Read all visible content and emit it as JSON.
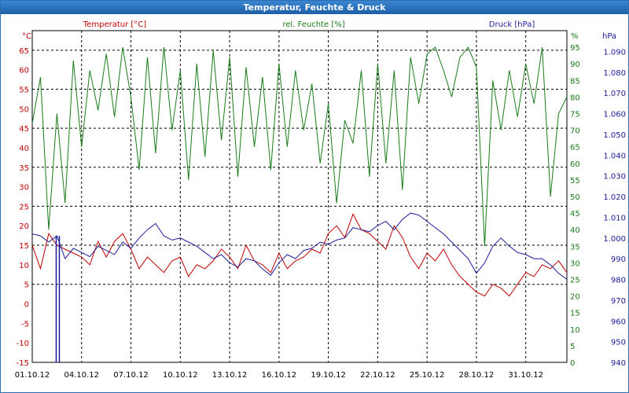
{
  "chart_data": {
    "type": "line",
    "title": "Temperatur, Feuchte & Druck",
    "x_tick_labels": [
      "01.10.12",
      "04.10.12",
      "07.10.12",
      "10.10.12",
      "13.10.12",
      "16.10.12",
      "19.10.12",
      "22.10.12",
      "25.10.12",
      "28.10.12",
      "31.10.12"
    ],
    "axes": {
      "temperature": {
        "label": "Temperatur [°C]",
        "unit_label": "°C",
        "range": [
          -15,
          70
        ],
        "ticks": [
          -15,
          -10,
          -5,
          0,
          5,
          10,
          15,
          20,
          25,
          30,
          35,
          40,
          45,
          50,
          55,
          60,
          65
        ],
        "color": "#c00000"
      },
      "humidity": {
        "label": "rel. Feuchte [%]",
        "unit_label": "%",
        "range": [
          0,
          100
        ],
        "ticks": [
          0,
          5,
          10,
          15,
          20,
          25,
          30,
          35,
          40,
          45,
          50,
          55,
          60,
          65,
          70,
          75,
          80,
          85,
          90,
          95
        ],
        "color": "#1a7a1a"
      },
      "pressure": {
        "label": "Druck [hPa]",
        "unit_label": "hPa",
        "range": [
          940,
          1100
        ],
        "ticks": [
          "940",
          "950",
          "960",
          "970",
          "980",
          "990",
          "1.000",
          "1.010",
          "1.020",
          "1.030",
          "1.040",
          "1.050",
          "1.060",
          "1.070",
          "1.080",
          "1.090"
        ],
        "color": "#1a1a9a"
      }
    },
    "series": [
      {
        "name": "Temperatur",
        "axis": "temperature",
        "color": "#c00000",
        "x": [
          0,
          0.5,
          1,
          1.5,
          2,
          2.5,
          3,
          3.5,
          4,
          4.5,
          5,
          5.5,
          6,
          6.5,
          7,
          7.5,
          8,
          8.5,
          9,
          9.5,
          10,
          10.5,
          11,
          11.5,
          12,
          12.5,
          13,
          13.5,
          14,
          14.5,
          15,
          15.5,
          16,
          16.5,
          17,
          17.5,
          18,
          18.5,
          19,
          19.5,
          20,
          20.5,
          21,
          21.5,
          22,
          22.5,
          23,
          23.5,
          24,
          24.5,
          25,
          25.5,
          26,
          26.5,
          27,
          27.5,
          28,
          28.5,
          29,
          29.5,
          30,
          30.5,
          31,
          31.5,
          32,
          32.5
        ],
        "values": [
          15,
          9,
          18,
          15,
          14,
          13,
          12,
          10,
          16,
          12,
          16,
          18,
          14,
          9,
          12,
          10,
          8,
          11,
          12,
          7,
          10,
          9,
          11,
          14,
          12,
          9,
          15,
          11,
          10,
          8,
          13,
          9,
          11,
          12,
          14,
          13,
          18,
          20,
          17,
          23,
          19,
          18,
          16,
          14,
          20,
          17,
          12,
          9,
          13,
          11,
          14,
          10,
          7,
          5,
          3,
          2,
          5,
          4,
          2,
          5,
          8,
          7,
          10,
          9,
          11,
          8
        ]
      },
      {
        "name": "rel. Feuchte",
        "axis": "humidity",
        "color": "#1a7a1a",
        "x": [
          0,
          0.5,
          1,
          1.5,
          2,
          2.5,
          3,
          3.5,
          4,
          4.5,
          5,
          5.5,
          6,
          6.5,
          7,
          7.5,
          8,
          8.5,
          9,
          9.5,
          10,
          10.5,
          11,
          11.5,
          12,
          12.5,
          13,
          13.5,
          14,
          14.5,
          15,
          15.5,
          16,
          16.5,
          17,
          17.5,
          18,
          18.5,
          19,
          19.5,
          20,
          20.5,
          21,
          21.5,
          22,
          22.5,
          23,
          23.5,
          24,
          24.5,
          25,
          25.5,
          26,
          26.5,
          27,
          27.5,
          28,
          28.5,
          29,
          29.5,
          30,
          30.5,
          31,
          31.5,
          32,
          32.5
        ],
        "values": [
          72,
          86,
          40,
          75,
          48,
          91,
          65,
          88,
          76,
          93,
          74,
          95,
          80,
          58,
          92,
          63,
          95,
          70,
          88,
          55,
          90,
          62,
          94,
          67,
          92,
          56,
          89,
          65,
          86,
          58,
          90,
          65,
          88,
          70,
          84,
          60,
          78,
          48,
          73,
          66,
          88,
          56,
          90,
          60,
          88,
          52,
          92,
          78,
          93,
          95,
          88,
          80,
          92,
          95,
          89,
          35,
          85,
          70,
          88,
          74,
          90,
          78,
          95,
          50,
          75,
          80
        ]
      },
      {
        "name": "Druck",
        "axis": "pressure",
        "color": "#1a1a9a",
        "x": [
          0,
          0.5,
          1,
          1.5,
          2,
          2.5,
          3,
          3.5,
          4,
          4.5,
          5,
          5.5,
          6,
          6.5,
          7,
          7.5,
          8,
          8.5,
          9,
          9.5,
          10,
          10.5,
          11,
          11.5,
          12,
          12.5,
          13,
          13.5,
          14,
          14.5,
          15,
          15.5,
          16,
          16.5,
          17,
          17.5,
          18,
          18.5,
          19,
          19.5,
          20,
          20.5,
          21,
          21.5,
          22,
          22.5,
          23,
          23.5,
          24,
          24.5,
          25,
          25.5,
          26,
          26.5,
          27,
          27.5,
          28,
          28.5,
          29,
          29.5,
          30,
          30.5,
          31,
          31.5,
          32,
          32.5
        ],
        "values": [
          1002,
          1001,
          998,
          1001,
          990,
          995,
          993,
          991,
          996,
          994,
          992,
          998,
          995,
          1000,
          1004,
          1007,
          1001,
          999,
          1000,
          998,
          996,
          993,
          990,
          992,
          988,
          986,
          990,
          989,
          985,
          982,
          988,
          992,
          990,
          994,
          995,
          998,
          997,
          999,
          1000,
          1005,
          1004,
          1003,
          1006,
          1008,
          1004,
          1009,
          1012,
          1011,
          1008,
          1005,
          1002,
          998,
          994,
          990,
          983,
          988,
          996,
          1000,
          996,
          993,
          992,
          990,
          990,
          987,
          983,
          980
        ],
        "spike": {
          "x": 1.6,
          "to": 940
        }
      }
    ]
  }
}
